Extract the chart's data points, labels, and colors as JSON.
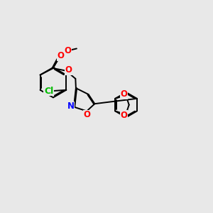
{
  "bg_color": "#e8e8e8",
  "bond_color": "#000000",
  "bond_width": 1.4,
  "dbo": 0.055,
  "atom_colors": {
    "O": "#ff0000",
    "N": "#0000ff",
    "Cl": "#00bb00",
    "C": "#000000"
  },
  "fontsize": 8.5
}
